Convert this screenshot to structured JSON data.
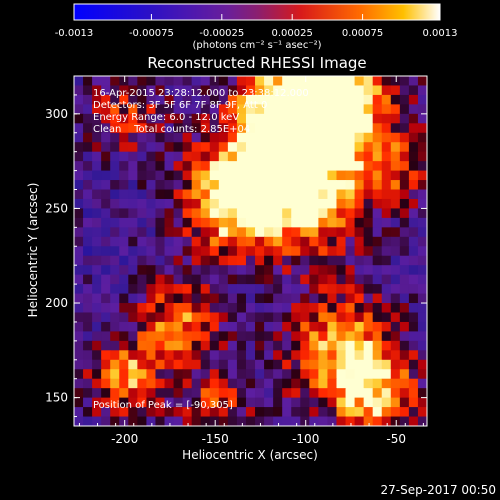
{
  "colorbar": {
    "ticks": [
      "-0.0013",
      "-0.00075",
      "-0.00025",
      "0.00025",
      "0.00075",
      "0.0013"
    ],
    "tick_values": [
      -0.0013,
      -0.00075,
      -0.00025,
      0.00025,
      0.00075,
      0.0013
    ],
    "units": "(photons cm⁻² s⁻¹ asec⁻²)",
    "range": [
      -0.0013,
      0.0013
    ]
  },
  "chart_data": {
    "type": "heatmap",
    "title": "Reconstructed RHESSI Image",
    "xlabel": "Heliocentric X (arcsec)",
    "ylabel": "Heliocentric Y (arcsec)",
    "xlim": [
      -228,
      -33
    ],
    "ylim": [
      135,
      320
    ],
    "x_ticks": [
      "-200",
      "-150",
      "-100",
      "-50"
    ],
    "x_tick_values": [
      -200,
      -150,
      -100,
      -50
    ],
    "y_ticks": [
      "150",
      "200",
      "250",
      "300"
    ],
    "y_tick_values": [
      150,
      200,
      250,
      300
    ],
    "grid_cols": 39,
    "grid_rows": 37,
    "peak_xy": [
      -90,
      305
    ],
    "info_lines": [
      "16-Apr-2015 23:28:12.000 to 23:38:12.000",
      "Detectors: 3F 5F 6F 7F 8F 9F, Att 0",
      "Energy Range: 6.0 - 12.0 keV",
      "Clean    Total counts: 2.85E+04"
    ],
    "peak_text": "Position of Peak = [-90,305]",
    "colors": {
      "low": "#0000ff",
      "mid": "#5a1ea0",
      "high": "#ff2200",
      "peak": "#ffffcc"
    }
  },
  "footer": {
    "timestamp": "27-Sep-2017 00:50"
  }
}
